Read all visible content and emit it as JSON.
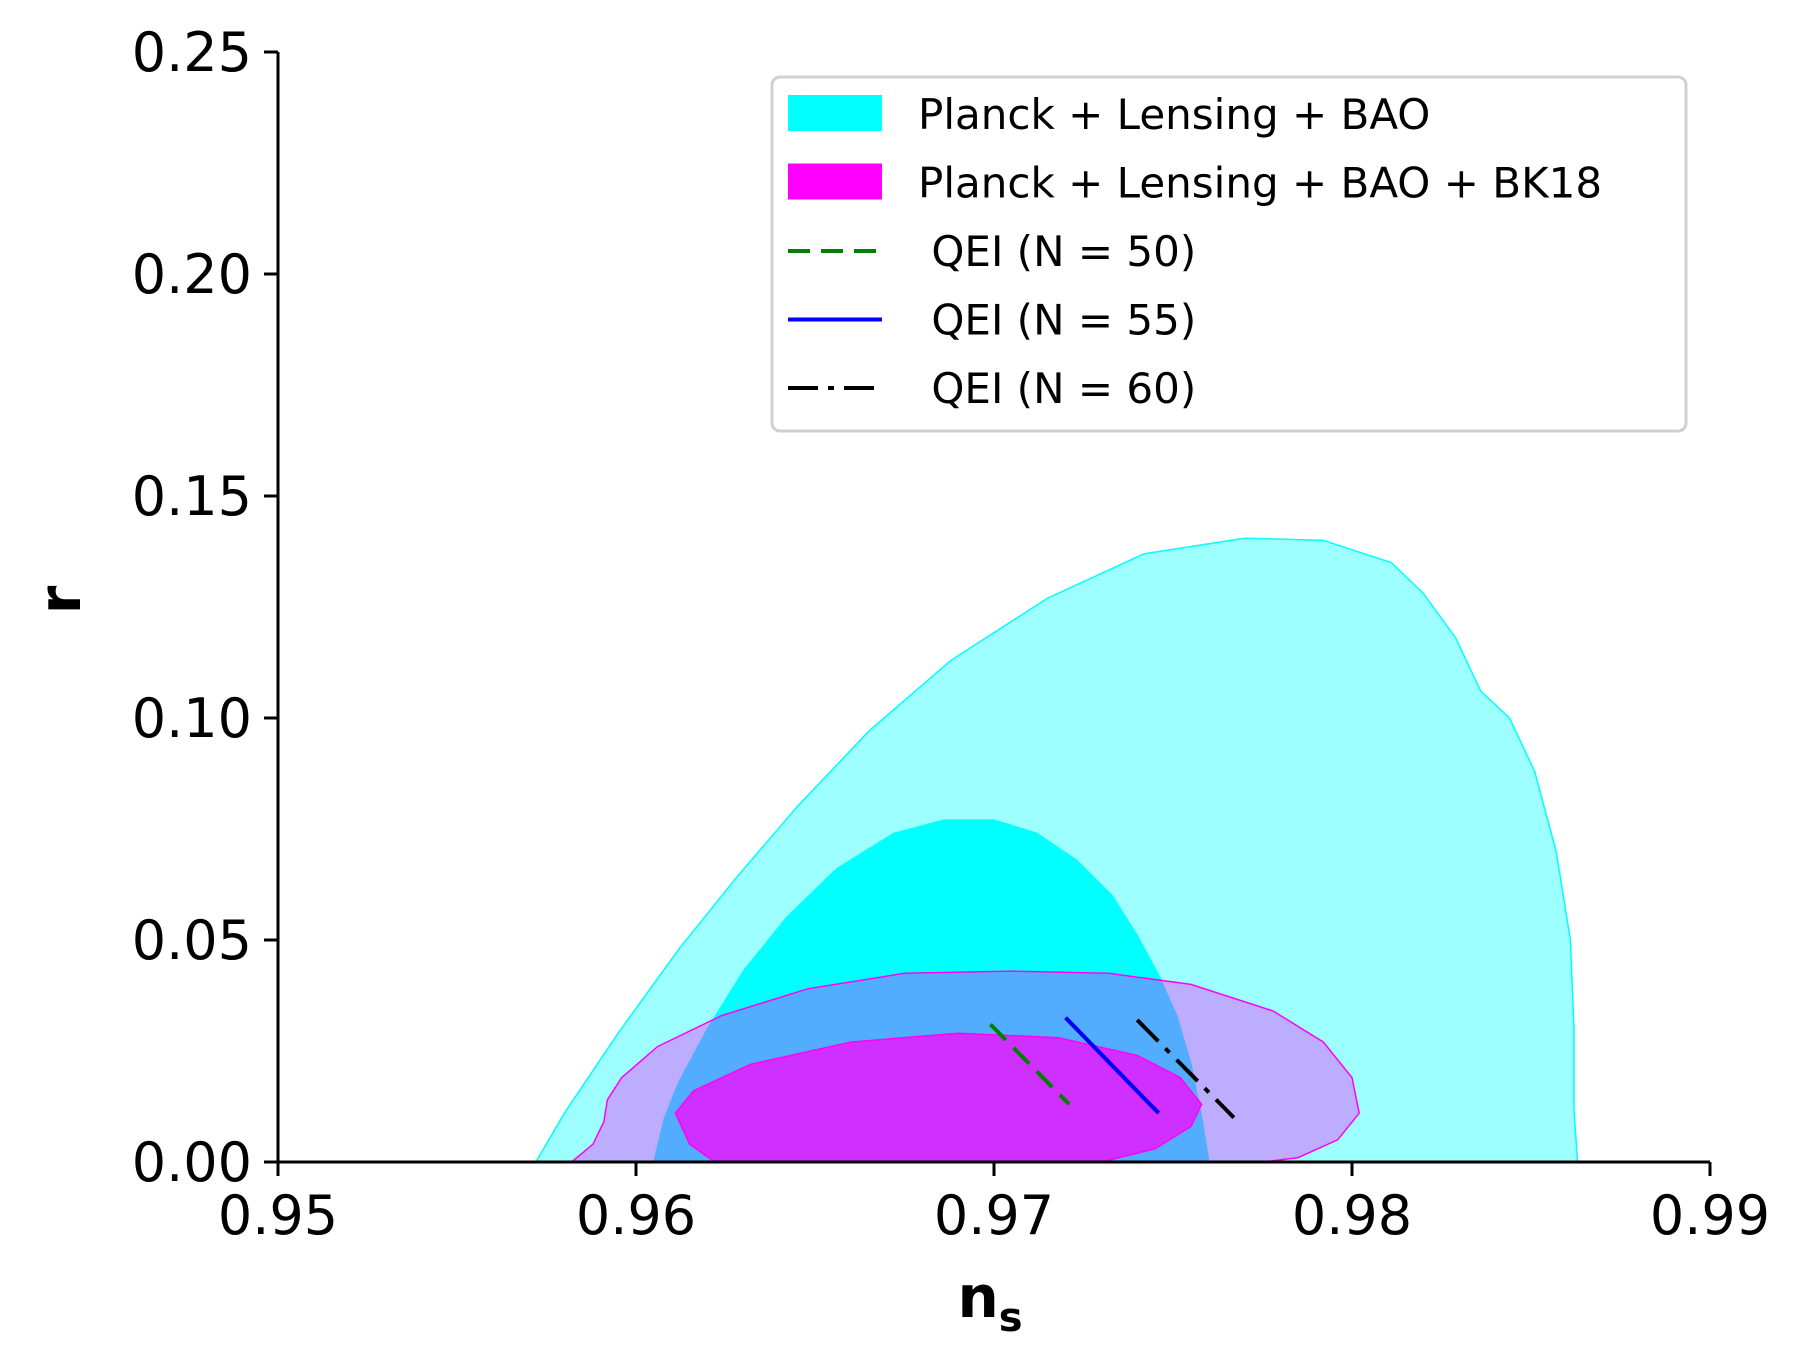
{
  "chart_data": {
    "type": "contour",
    "xlabel": "n",
    "xlabel_subscript": "s",
    "ylabel": "r",
    "xlim": [
      0.95,
      0.99
    ],
    "ylim": [
      0.0,
      0.25
    ],
    "x_ticks": [
      0.95,
      0.96,
      0.97,
      0.98,
      0.99
    ],
    "x_tick_labels": [
      "0.95",
      "0.96",
      "0.97",
      "0.98",
      "0.99"
    ],
    "y_ticks": [
      0.0,
      0.05,
      0.1,
      0.15,
      0.2,
      0.25
    ],
    "y_tick_labels": [
      "0.00",
      "0.05",
      "0.10",
      "0.15",
      "0.20",
      "0.25"
    ],
    "grid": false,
    "legend_position": "top-right",
    "regions": [
      {
        "name": "Planck + Lensing + BAO",
        "color": "#00ffff",
        "contours": [
          {
            "level": "95%",
            "opacity": 0.38,
            "points": [
              [
                0.9572,
                0.0
              ],
              [
                0.958,
                0.011
              ],
              [
                0.9595,
                0.029
              ],
              [
                0.9612,
                0.048
              ],
              [
                0.9628,
                0.064
              ],
              [
                0.9645,
                0.08
              ],
              [
                0.9665,
                0.097
              ],
              [
                0.9688,
                0.113
              ],
              [
                0.9715,
                0.127
              ],
              [
                0.9742,
                0.137
              ],
              [
                0.977,
                0.1405
              ],
              [
                0.9792,
                0.14
              ],
              [
                0.9811,
                0.135
              ],
              [
                0.982,
                0.128
              ],
              [
                0.9829,
                0.118
              ],
              [
                0.9836,
                0.106
              ],
              [
                0.9844,
                0.1
              ],
              [
                0.9851,
                0.088
              ],
              [
                0.9857,
                0.07
              ],
              [
                0.9861,
                0.05
              ],
              [
                0.9862,
                0.03
              ],
              [
                0.9862,
                0.012
              ],
              [
                0.9863,
                0.0
              ]
            ]
          },
          {
            "level": "68%",
            "opacity": 1.0,
            "points": [
              [
                0.9605,
                0.0
              ],
              [
                0.9608,
                0.01
              ],
              [
                0.9612,
                0.018
              ],
              [
                0.962,
                0.03
              ],
              [
                0.963,
                0.043
              ],
              [
                0.9642,
                0.055
              ],
              [
                0.9656,
                0.066
              ],
              [
                0.9672,
                0.074
              ],
              [
                0.9686,
                0.077
              ],
              [
                0.97,
                0.077
              ],
              [
                0.9712,
                0.074
              ],
              [
                0.9723,
                0.068
              ],
              [
                0.9733,
                0.06
              ],
              [
                0.974,
                0.051
              ],
              [
                0.9746,
                0.042
              ],
              [
                0.9751,
                0.033
              ],
              [
                0.9755,
                0.022
              ],
              [
                0.9758,
                0.01
              ],
              [
                0.976,
                0.0
              ]
            ]
          }
        ]
      },
      {
        "name": "Planck + Lensing + BAO + BK18",
        "color": "#ff00ff",
        "contours": [
          {
            "level": "95%",
            "opacity": 0.32,
            "points": [
              [
                0.9582,
                0.0
              ],
              [
                0.9588,
                0.004
              ],
              [
                0.9591,
                0.009
              ],
              [
                0.9592,
                0.014
              ],
              [
                0.9596,
                0.019
              ],
              [
                0.9606,
                0.026
              ],
              [
                0.9624,
                0.033
              ],
              [
                0.9648,
                0.039
              ],
              [
                0.9675,
                0.0425
              ],
              [
                0.9705,
                0.043
              ],
              [
                0.9732,
                0.0425
              ],
              [
                0.9755,
                0.04
              ],
              [
                0.9778,
                0.034
              ],
              [
                0.9792,
                0.027
              ],
              [
                0.98,
                0.019
              ],
              [
                0.9802,
                0.011
              ],
              [
                0.9796,
                0.005
              ],
              [
                0.9785,
                0.001
              ],
              [
                0.9775,
                0.0
              ]
            ]
          },
          {
            "level": "68%",
            "opacity": 0.72,
            "points": [
              [
                0.9622,
                0.0
              ],
              [
                0.9615,
                0.004
              ],
              [
                0.9611,
                0.011
              ],
              [
                0.9616,
                0.016
              ],
              [
                0.9632,
                0.022
              ],
              [
                0.966,
                0.027
              ],
              [
                0.969,
                0.029
              ],
              [
                0.9718,
                0.028
              ],
              [
                0.974,
                0.024
              ],
              [
                0.9752,
                0.019
              ],
              [
                0.9758,
                0.013
              ],
              [
                0.9755,
                0.008
              ],
              [
                0.9745,
                0.003
              ],
              [
                0.973,
                0.0
              ]
            ]
          }
        ]
      }
    ],
    "series": [
      {
        "name": " QEI (N = 50)",
        "style": "dashed",
        "color": "#008000",
        "x": [
          0.9699,
          0.9721
        ],
        "y": [
          0.031,
          0.013
        ]
      },
      {
        "name": " QEI (N = 55)",
        "style": "solid",
        "color": "#0000ff",
        "x": [
          0.972,
          0.9746
        ],
        "y": [
          0.0325,
          0.011
        ]
      },
      {
        "name": " QEI (N = 60)",
        "style": "dashdot",
        "color": "#000000",
        "x": [
          0.974,
          0.9767
        ],
        "y": [
          0.032,
          0.01
        ]
      }
    ]
  }
}
